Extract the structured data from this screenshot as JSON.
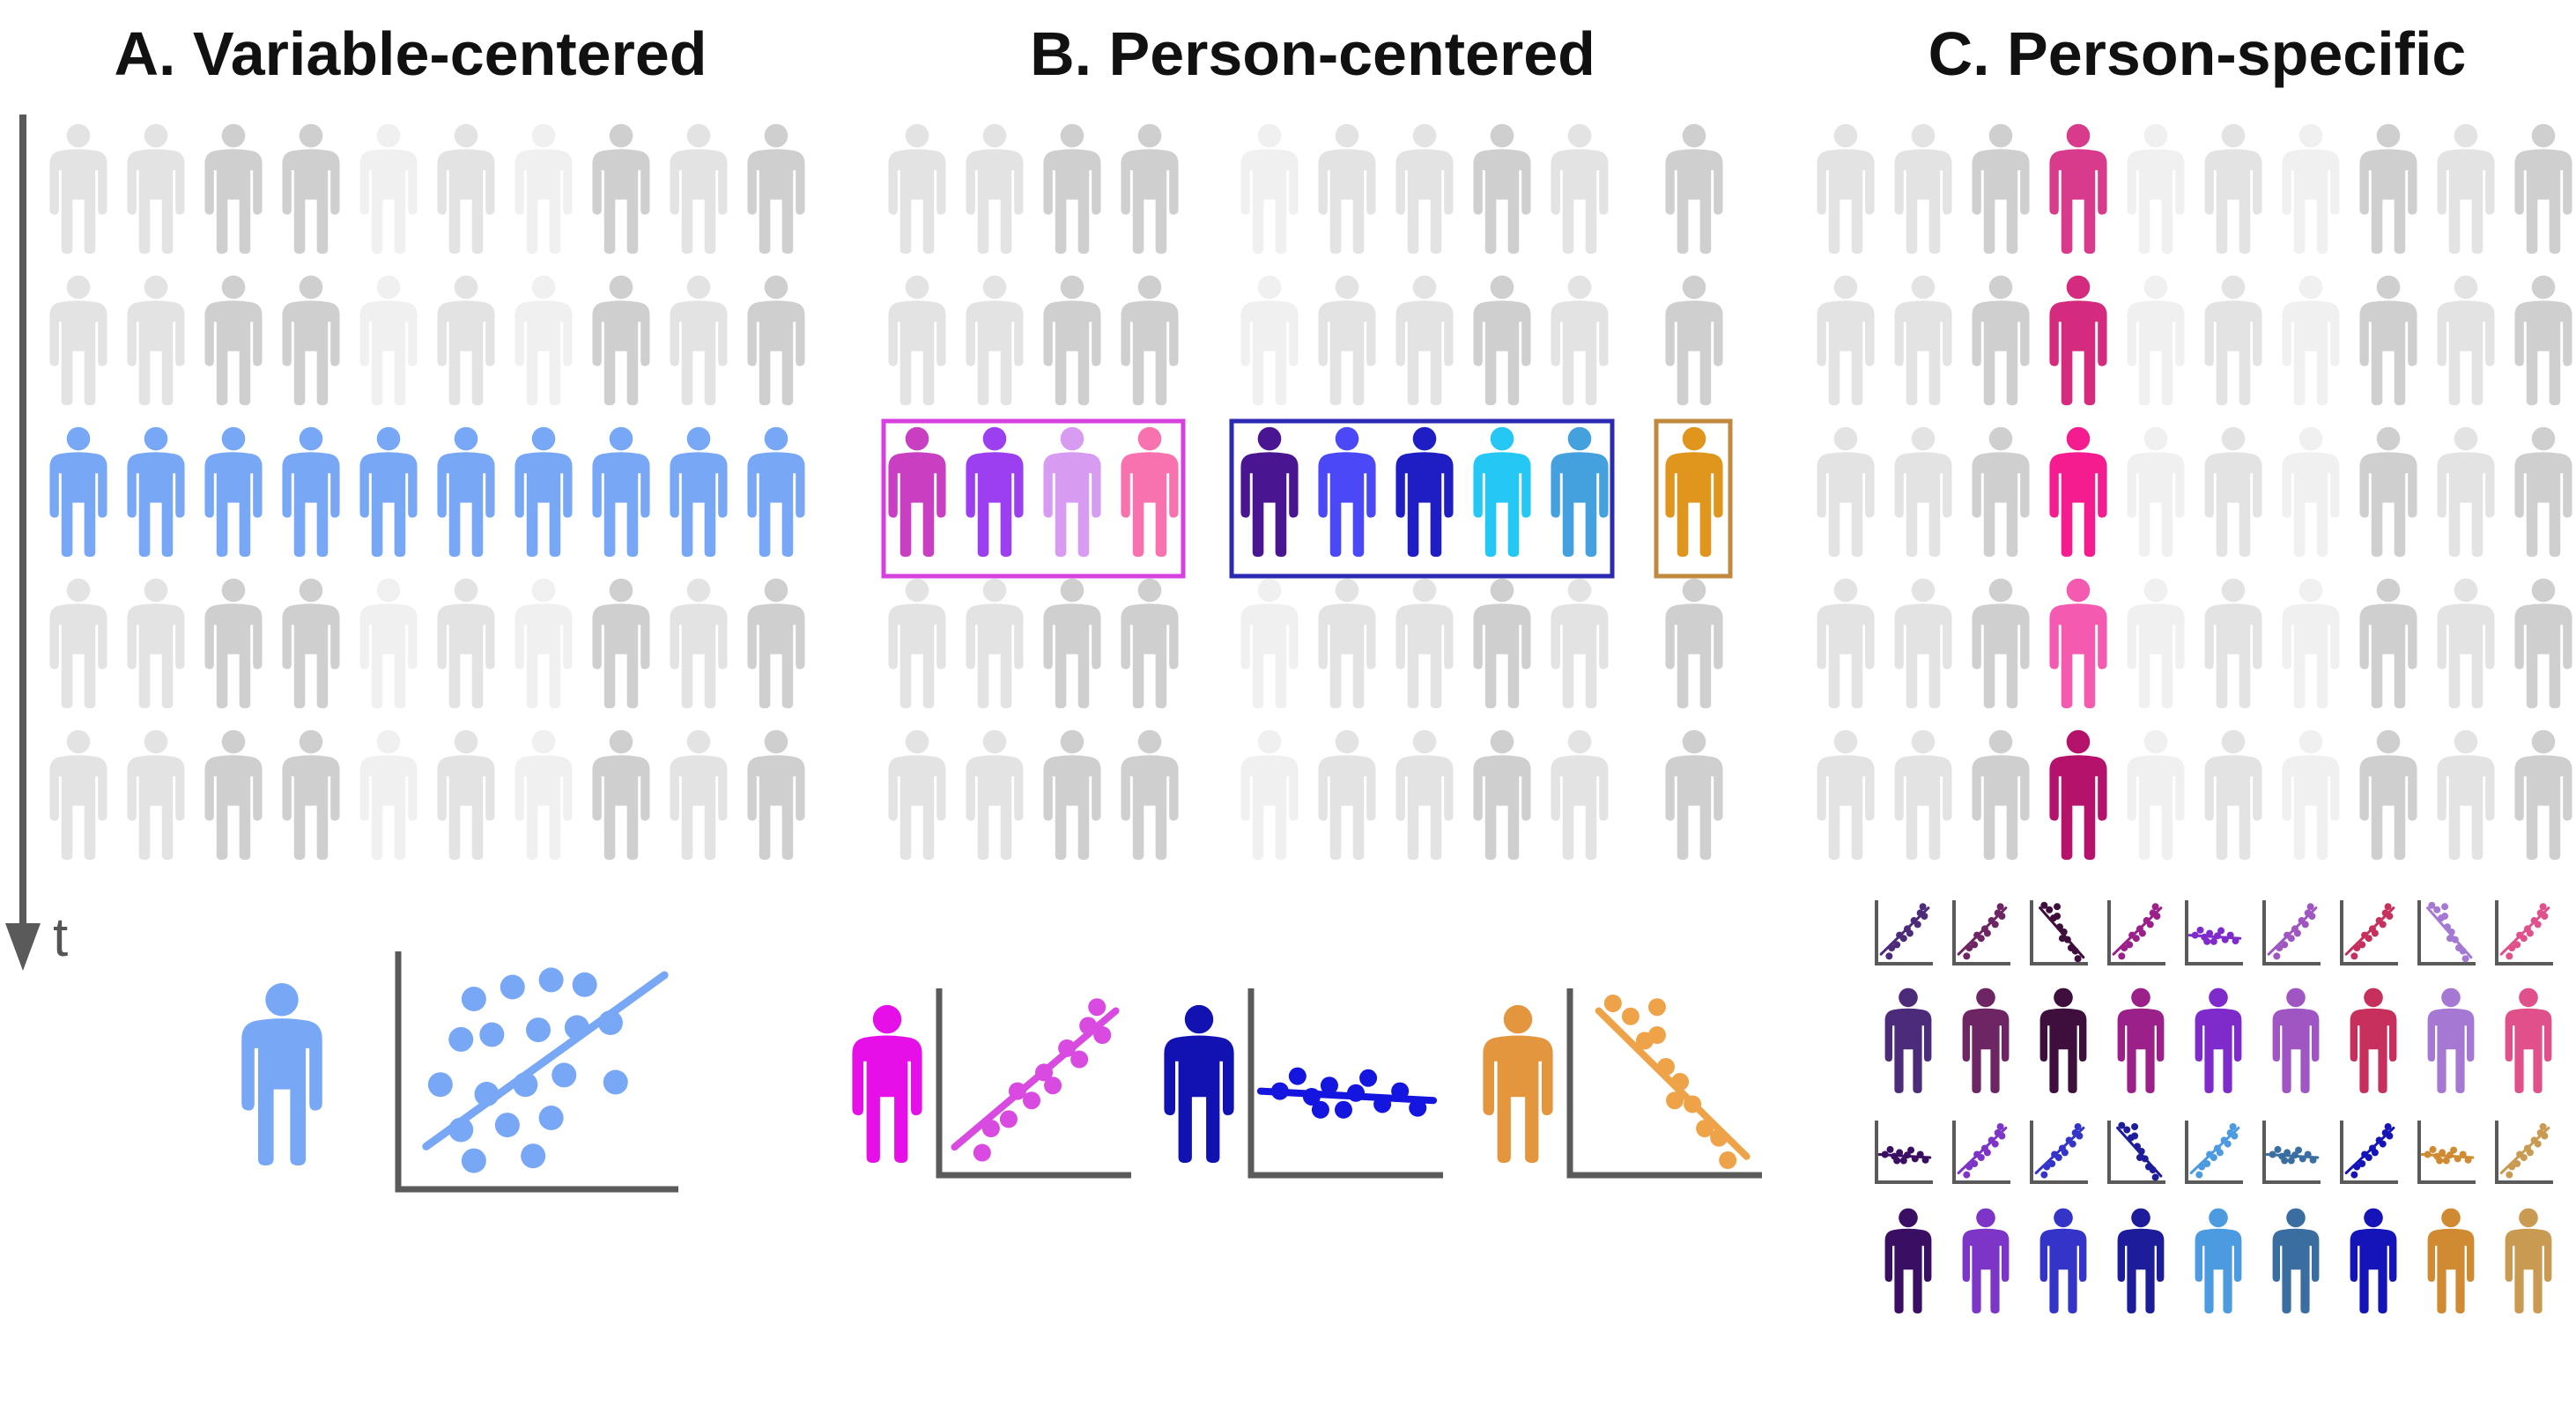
{
  "panels": {
    "a": {
      "title": "A. Variable-centered"
    },
    "b": {
      "title": "B. Person-centered"
    },
    "c": {
      "title": "C. Person-specific"
    }
  },
  "time_axis": {
    "label": "t"
  },
  "colors": {
    "axis": "#5a5a5a",
    "grey_light": "#f0f0f0",
    "grey_mid": "#e3e3e3",
    "grey_dark": "#cfcfcf",
    "variable_blue": "#77a7f5",
    "cluster1_box": "#d63fe0",
    "cluster2_box": "#2b2ab3",
    "cluster3_box": "#c0893e",
    "cluster1": [
      "#c93fc1",
      "#9b3ff0",
      "#d79cf2",
      "#f872b0"
    ],
    "cluster2": [
      "#4a1591",
      "#4b49f7",
      "#1f1ec4",
      "#25c7f5",
      "#45a1de"
    ],
    "cluster3": [
      "#e0951c"
    ],
    "person_specific_column": [
      "#d93b8c",
      "#d42b7e",
      "#f41c8f",
      "#f45ab0",
      "#b5126b"
    ],
    "summary_b": [
      "#e60fe8",
      "#1212b3",
      "#e3963e"
    ],
    "summary_b_plots": [
      "#d84ae0",
      "#1515e0",
      "#efa349"
    ],
    "c_row1_people": [
      "#4c2b7a",
      "#6e2563",
      "#3e0f3c",
      "#9b2089",
      "#7f2bcc",
      "#9f55c2",
      "#c7305d",
      "#a578d3",
      "#e0508b"
    ],
    "c_row1_plots": [
      "#4c2b7a",
      "#6e2563",
      "#3e0f3c",
      "#9b2089",
      "#7f2bcc",
      "#9f55c2",
      "#c7305d",
      "#a578d3",
      "#e0508b"
    ],
    "c_row2_people": [
      "#3a0f63",
      "#7c35c7",
      "#3534c9",
      "#1d1c9a",
      "#4c9be0",
      "#3a6ea0",
      "#1414b8",
      "#cf8a32",
      "#c99a52"
    ],
    "c_row2_plots": [
      "#3a0f63",
      "#7c35c7",
      "#3534c9",
      "#1d1c9a",
      "#4c9be0",
      "#3a6ea0",
      "#1414b8",
      "#cf8a32",
      "#c99a52"
    ]
  },
  "icons": {
    "person": "person-icon",
    "scatter": "scatter-plot-icon",
    "axis_arrow": "down-arrow-icon"
  }
}
